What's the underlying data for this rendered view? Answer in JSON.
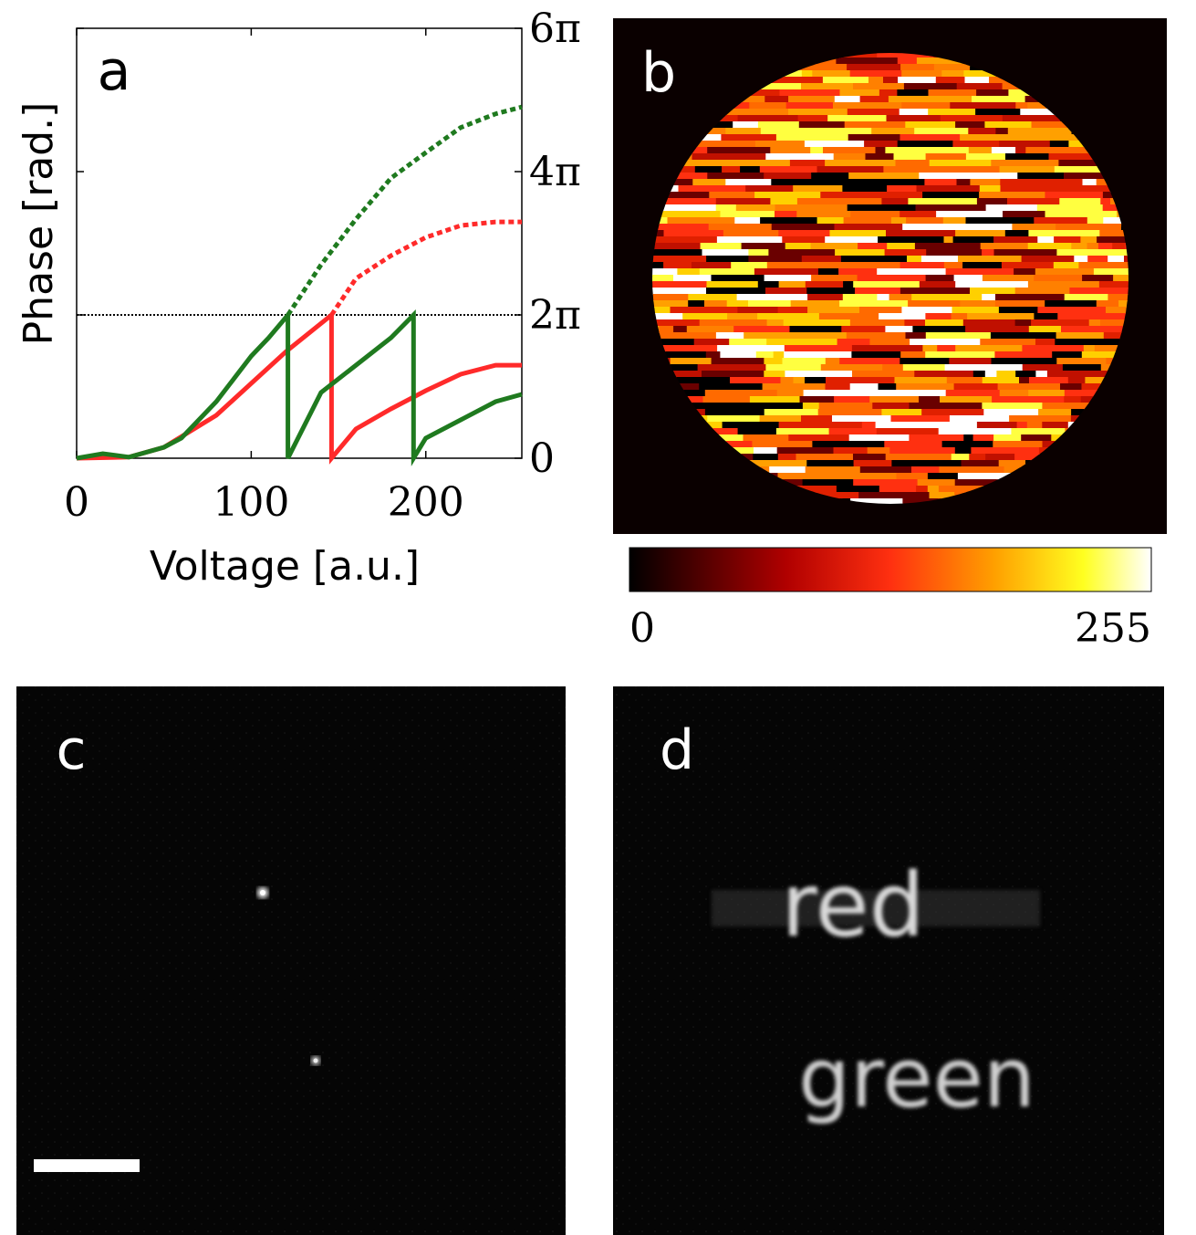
{
  "chart_data": [
    {
      "type": "line",
      "panel_label": "a",
      "xlabel": "Voltage [a.u.]",
      "ylabel": "Phase [rad.]",
      "xlim": [
        0,
        255
      ],
      "xticks": [
        0,
        100,
        200
      ],
      "ylim": [
        0,
        18.85
      ],
      "yticks": [
        0,
        {
          "value": 6.283,
          "label": "2π"
        },
        {
          "value": 12.566,
          "label": "4π"
        },
        {
          "value": 18.85,
          "label": "6π"
        }
      ],
      "series": [
        {
          "color": "#000000",
          "line_style": "dotted",
          "x": [
            0,
            255
          ],
          "values": [
            6.283,
            6.283
          ]
        },
        {
          "color": "#1f7a1f",
          "line_style": "dotted",
          "x": [
            121,
            140,
            160,
            180,
            200,
            220,
            240,
            255
          ],
          "values": [
            6.28,
            8.48,
            10.48,
            12.28,
            13.4,
            14.5,
            15.1,
            15.4
          ]
        },
        {
          "color": "#ff2a2a",
          "line_style": "dotted",
          "x": [
            146,
            160,
            180,
            200,
            220,
            240,
            255
          ],
          "values": [
            6.28,
            7.88,
            8.88,
            9.68,
            10.2,
            10.36,
            10.36
          ]
        },
        {
          "color": "#ff2a2a",
          "line_style": "solid",
          "x": [
            0,
            30,
            50,
            80,
            100,
            120,
            146,
            146,
            160,
            180,
            200,
            220,
            240,
            255
          ],
          "values": [
            0,
            0.05,
            0.48,
            1.88,
            3.28,
            4.68,
            6.28,
            0,
            1.28,
            2.16,
            2.96,
            3.68,
            4.08,
            4.08
          ]
        },
        {
          "color": "#1f7a1f",
          "line_style": "solid",
          "x": [
            0,
            15,
            30,
            50,
            60,
            80,
            100,
            110,
            121,
            121,
            140,
            160,
            180,
            193,
            193,
            200,
            220,
            240,
            255
          ],
          "values": [
            0,
            0.2,
            0.05,
            0.48,
            0.88,
            2.48,
            4.48,
            5.28,
            6.28,
            0,
            2.88,
            4.08,
            5.28,
            6.28,
            0,
            0.88,
            1.68,
            2.48,
            2.8
          ]
        }
      ]
    },
    {
      "type": "heatmap",
      "panel_label": "b",
      "colorbar": {
        "lim": [
          0,
          255
        ],
        "ticks": [
          0,
          255
        ]
      }
    },
    {
      "type": "image",
      "panel_label": "c"
    },
    {
      "type": "image",
      "panel_label": "d",
      "texts": [
        "red",
        "green"
      ]
    }
  ]
}
